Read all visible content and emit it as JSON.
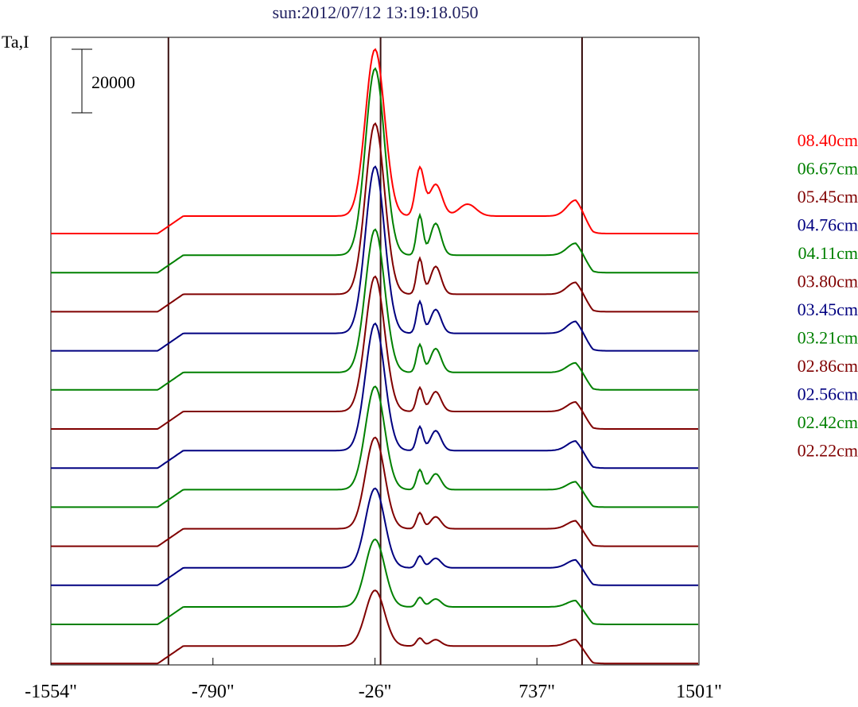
{
  "chart_data": {
    "type": "line",
    "title": "sun:2012/07/12 13:19:18.050",
    "ylabel": "Ta,I",
    "scale_bar_label": "20000",
    "x_ticks": [
      {
        "label": "-1554\"",
        "value": -1554
      },
      {
        "label": "-790\"",
        "value": -790
      },
      {
        "label": "-26\"",
        "value": -26
      },
      {
        "label": "737\"",
        "value": 737
      },
      {
        "label": "1501\"",
        "value": 1501
      }
    ],
    "xlim": [
      -1554,
      1501
    ],
    "vertical_markers": [
      -1000,
      0,
      950
    ],
    "offset_units": 48,
    "series": [
      {
        "name": "08.40cm",
        "color": "#ff0000",
        "baseline_index": 0,
        "peak": 210,
        "bumps": [
          [
            185,
            60,
            20
          ],
          [
            260,
            40,
            30
          ],
          [
            410,
            15,
            40
          ],
          [
            920,
            20,
            40
          ]
        ]
      },
      {
        "name": "06.67cm",
        "color": "#008000",
        "baseline_index": 1,
        "peak": 235,
        "bumps": [
          [
            185,
            50,
            15
          ],
          [
            260,
            40,
            25
          ],
          [
            920,
            15,
            40
          ]
        ]
      },
      {
        "name": "05.45cm",
        "color": "#800000",
        "baseline_index": 2,
        "peak": 215,
        "bumps": [
          [
            185,
            45,
            15
          ],
          [
            260,
            35,
            25
          ],
          [
            920,
            15,
            40
          ]
        ]
      },
      {
        "name": "04.76cm",
        "color": "#000080",
        "baseline_index": 3,
        "peak": 210,
        "bumps": [
          [
            185,
            40,
            15
          ],
          [
            260,
            30,
            25
          ],
          [
            920,
            15,
            40
          ]
        ]
      },
      {
        "name": "04.11cm",
        "color": "#008000",
        "baseline_index": 4,
        "peak": 180,
        "bumps": [
          [
            185,
            35,
            15
          ],
          [
            260,
            30,
            25
          ],
          [
            920,
            12,
            40
          ]
        ]
      },
      {
        "name": "03.80cm",
        "color": "#800000",
        "baseline_index": 5,
        "peak": 170,
        "bumps": [
          [
            185,
            30,
            15
          ],
          [
            260,
            25,
            25
          ],
          [
            920,
            12,
            40
          ]
        ]
      },
      {
        "name": "03.45cm",
        "color": "#000080",
        "baseline_index": 6,
        "peak": 160,
        "bumps": [
          [
            185,
            30,
            15
          ],
          [
            260,
            25,
            25
          ],
          [
            920,
            12,
            40
          ]
        ]
      },
      {
        "name": "03.21cm",
        "color": "#008000",
        "baseline_index": 7,
        "peak": 130,
        "bumps": [
          [
            185,
            25,
            15
          ],
          [
            260,
            20,
            25
          ],
          [
            920,
            10,
            40
          ]
        ]
      },
      {
        "name": "02.86cm",
        "color": "#800000",
        "baseline_index": 8,
        "peak": 115,
        "bumps": [
          [
            185,
            20,
            15
          ],
          [
            260,
            15,
            25
          ],
          [
            920,
            10,
            40
          ]
        ]
      },
      {
        "name": "02.56cm",
        "color": "#000080",
        "baseline_index": 9,
        "peak": 100,
        "bumps": [
          [
            185,
            15,
            15
          ],
          [
            260,
            12,
            25
          ],
          [
            920,
            10,
            40
          ]
        ]
      },
      {
        "name": "02.42cm",
        "color": "#008000",
        "baseline_index": 10,
        "peak": 85,
        "bumps": [
          [
            185,
            12,
            15
          ],
          [
            260,
            10,
            25
          ],
          [
            920,
            8,
            40
          ]
        ]
      },
      {
        "name": "02.22cm",
        "color": "#800000",
        "baseline_index": 11,
        "peak": 70,
        "bumps": [
          [
            185,
            10,
            15
          ],
          [
            260,
            8,
            25
          ],
          [
            920,
            8,
            40
          ]
        ]
      }
    ],
    "grid": false,
    "legend_position": "right"
  }
}
